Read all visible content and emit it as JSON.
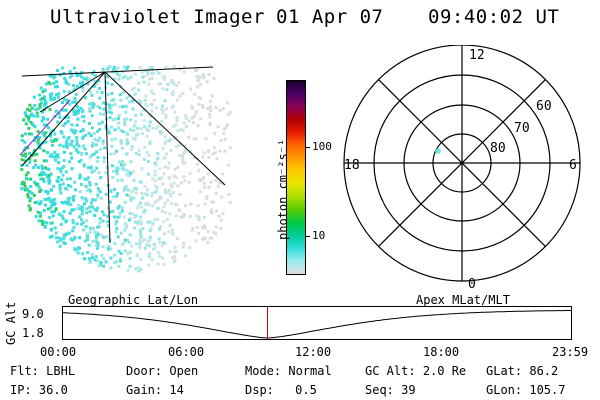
{
  "header": {
    "instrument": "Ultraviolet Imager",
    "date": "01 Apr 07",
    "time": "09:40:02 UT"
  },
  "colorbar": {
    "unit_label": "photon cm⁻²s⁻¹",
    "ticks": [
      "100",
      "10"
    ],
    "colors": [
      "#1a0033",
      "#4d0066",
      "#8b0055",
      "#b30000",
      "#e61a00",
      "#ff6600",
      "#ff9900",
      "#ffcc00",
      "#e6e600",
      "#aadd00",
      "#55cc00",
      "#00cc44",
      "#00cc99",
      "#33dddd",
      "#99eeee",
      "#dddddd"
    ]
  },
  "polar_plot": {
    "mlt_labels": {
      "top": "12",
      "left": "18",
      "right": "6",
      "bottom": "0"
    },
    "lat_labels": [
      "60",
      "70",
      "80"
    ]
  },
  "timeline": {
    "ylabel": "GC Alt",
    "yticks": [
      "9.0",
      "1.8"
    ],
    "left_caption": "Geographic Lat/Lon",
    "right_caption": "Apex MLat/MLT",
    "xticks": [
      "00:00",
      "06:00",
      "12:00",
      "18:00",
      "23:59"
    ],
    "current_time_fraction": 0.403
  },
  "status": {
    "filter": {
      "label": "Flt:",
      "value": "LBHL"
    },
    "ip": {
      "label": "IP:",
      "value": "36.0"
    },
    "door": {
      "label": "Door:",
      "value": "Open"
    },
    "gain": {
      "label": "Gain:",
      "value": "14"
    },
    "mode": {
      "label": "Mode:",
      "value": "Normal"
    },
    "dsp": {
      "label": "Dsp:",
      "value": "0.5"
    },
    "gc_alt": {
      "label": "GC Alt:",
      "value": "2.0 Re"
    },
    "seq": {
      "label": "Seq:",
      "value": "39"
    },
    "glat": {
      "label": "GLat:",
      "value": "86.2"
    },
    "glon": {
      "label": "GLon:",
      "value": "105.7"
    }
  }
}
